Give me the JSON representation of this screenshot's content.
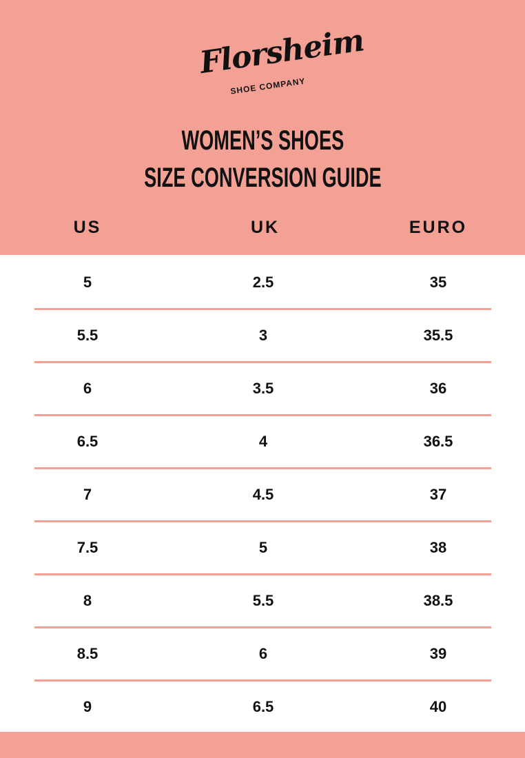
{
  "brand": {
    "name": "Florsheim",
    "tagline": "SHOE COMPANY"
  },
  "title": {
    "line1": "WOMEN’S SHOES",
    "line2": "SIZE CONVERSION GUIDE"
  },
  "columns": [
    "US",
    "UK",
    "EURO"
  ],
  "rows": [
    [
      "5",
      "2.5",
      "35"
    ],
    [
      "5.5",
      "3",
      "35.5"
    ],
    [
      "6",
      "3.5",
      "36"
    ],
    [
      "6.5",
      "4",
      "36.5"
    ],
    [
      "7",
      "4.5",
      "37"
    ],
    [
      "7.5",
      "5",
      "38"
    ],
    [
      "8",
      "5.5",
      "38.5"
    ],
    [
      "8.5",
      "6",
      "39"
    ],
    [
      "9",
      "6.5",
      "40"
    ]
  ],
  "colors": {
    "accent": "#f4a195",
    "text": "#111111",
    "background": "#ffffff"
  }
}
